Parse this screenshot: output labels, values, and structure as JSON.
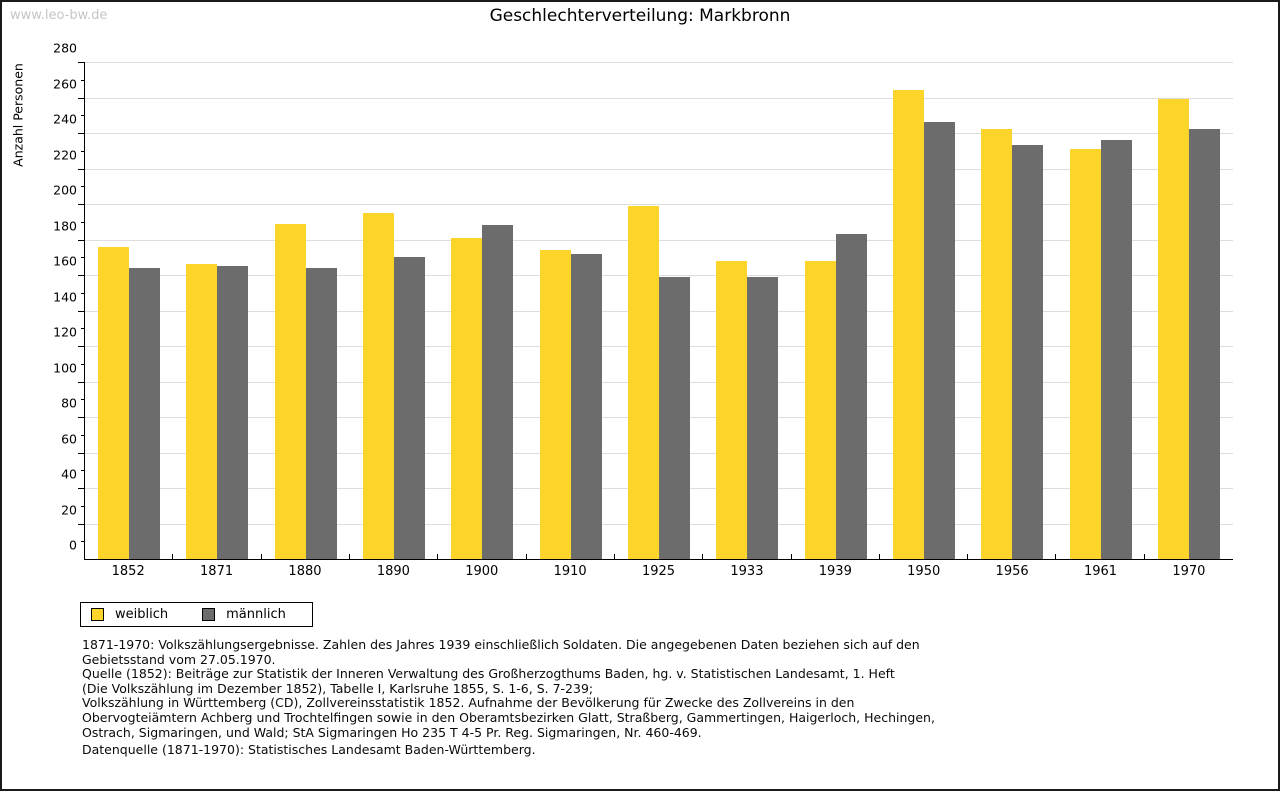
{
  "watermark": "www.leo-bw.de",
  "title": "Geschlechterverteilung: Markbronn",
  "colors": {
    "weiblich": "#fdd42a",
    "maennlich": "#6c6c6c",
    "gridline": "#dddddd",
    "axis": "#000000",
    "watermark": "#c6c6c6"
  },
  "chart_data": {
    "type": "bar",
    "title": "Geschlechterverteilung: Markbronn",
    "ylabel": "Anzahl Personen",
    "xlabel": "",
    "ylim": [
      0,
      280
    ],
    "ytick_step": 20,
    "yminor_step": 10,
    "grid": true,
    "legend_position": "bottom-left",
    "categories": [
      "1852",
      "1871",
      "1880",
      "1890",
      "1900",
      "1910",
      "1925",
      "1933",
      "1939",
      "1950",
      "1956",
      "1961",
      "1970"
    ],
    "series": [
      {
        "name": "weiblich",
        "color": "#fdd42a",
        "values": [
          176,
          166,
          189,
          195,
          181,
          174,
          199,
          168,
          168,
          264,
          242,
          231,
          259
        ]
      },
      {
        "name": "männlich",
        "color": "#6c6c6c",
        "values": [
          164,
          165,
          164,
          170,
          188,
          172,
          159,
          159,
          183,
          246,
          233,
          236,
          242
        ]
      }
    ]
  },
  "legend": {
    "items": [
      {
        "label": "weiblich",
        "color": "#fdd42a"
      },
      {
        "label": "männlich",
        "color": "#6c6c6c"
      }
    ]
  },
  "notes": {
    "lines": [
      "1871-1970: Volkszählungsergebnisse. Zahlen des Jahres 1939 einschließlich Soldaten. Die angegebenen Daten beziehen sich auf den",
      "Gebietsstand vom 27.05.1970.",
      "Quelle (1852): Beiträge zur Statistik der Inneren Verwaltung des Großherzogthums Baden, hg. v. Statistischen Landesamt, 1. Heft",
      "(Die Volkszählung im Dezember 1852), Tabelle I, Karlsruhe 1855, S. 1-6, S. 7-239;",
      "Volkszählung in Württemberg (CD), Zollvereinsstatistik 1852. Aufnahme der Bevölkerung für Zwecke des Zollvereins in den",
      "Obervogteiämtern Achberg und Trochtelfingen sowie in den Oberamtsbezirken Glatt, Straßberg, Gammertingen, Haigerloch, Hechingen,",
      "Ostrach, Sigmaringen, und Wald; StA Sigmaringen Ho 235 T 4-5 Pr. Reg. Sigmaringen, Nr. 460-469."
    ],
    "datenquelle": "Datenquelle (1871-1970): Statistisches Landesamt Baden-Württemberg."
  }
}
